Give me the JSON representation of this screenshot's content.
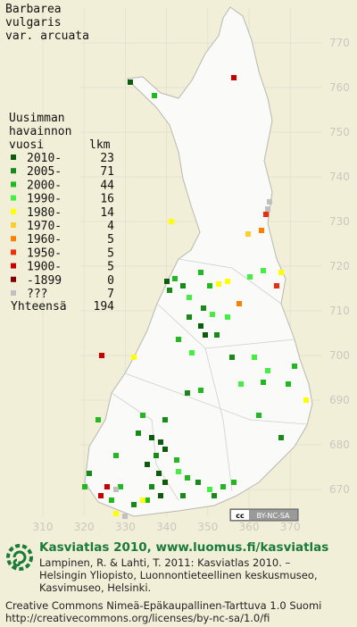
{
  "title": [
    "Barbarea",
    "vulgaris",
    "var. arcuata"
  ],
  "legend": {
    "heading": [
      "Uusimman",
      "havainnon"
    ],
    "year_label": "vuosi",
    "count_label": "lkm",
    "rows": [
      {
        "label": "2010-",
        "count": 23,
        "color": "#0b5d0b"
      },
      {
        "label": "2005-",
        "count": 71,
        "color": "#178a17"
      },
      {
        "label": "2000-",
        "count": 44,
        "color": "#22b822"
      },
      {
        "label": "1990-",
        "count": 16,
        "color": "#44ee44"
      },
      {
        "label": "1980-",
        "count": 14,
        "color": "#ffff00"
      },
      {
        "label": "1970-",
        "count": 4,
        "color": "#ffcc33"
      },
      {
        "label": "1960-",
        "count": 5,
        "color": "#ff8000"
      },
      {
        "label": "1950-",
        "count": 5,
        "color": "#e83010"
      },
      {
        "label": "1900-",
        "count": 5,
        "color": "#c80000"
      },
      {
        "label": "-1899",
        "count": 0,
        "color": "#800000"
      },
      {
        "label": "???",
        "count": 7,
        "color": "#c0c0c0"
      }
    ],
    "total_label": "Yhteensä",
    "total": 194
  },
  "grid": {
    "northing": [
      770,
      760,
      750,
      740,
      730,
      720,
      710,
      700,
      690,
      680,
      670
    ],
    "easting": [
      310,
      320,
      330,
      340,
      350,
      360,
      370
    ]
  },
  "badge": "BY-NC-SA",
  "footer": {
    "heading": "Kasviatlas 2010, www.luomus.fi/kasviatlas",
    "citation": [
      "Lampinen, R. & Lahti, T. 2011: Kasviatlas 2010. –",
      "Helsingin Yliopisto, Luonnontieteellinen keskusmuseo,",
      "Kasvimuseo, Helsinki."
    ],
    "license": [
      "Creative Commons Nimeä-Epäkaupallinen-Tarttuva 1.0 Suomi",
      "http://creativecommons.org/licenses/by-nc-sa/1.0/fi"
    ]
  }
}
